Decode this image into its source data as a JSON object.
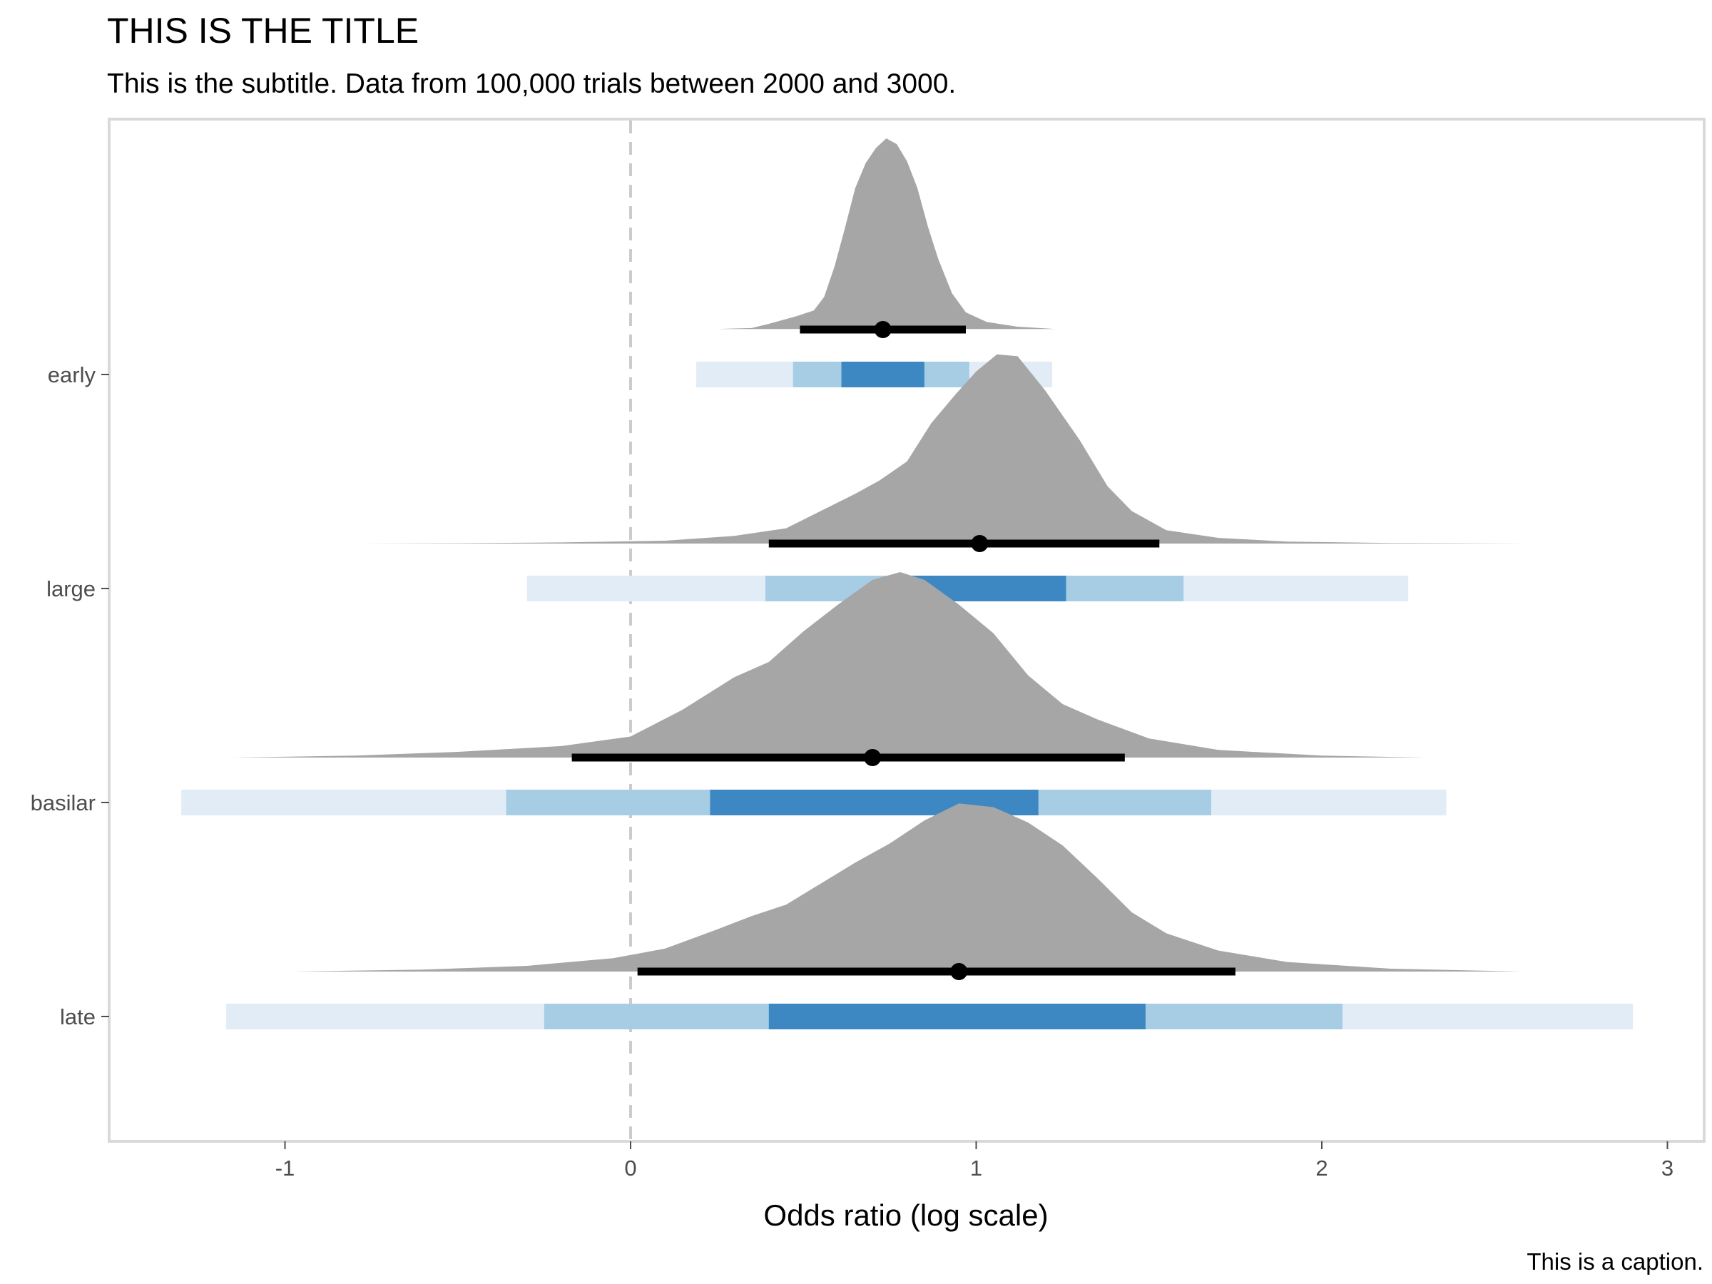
{
  "chart_data": {
    "type": "interval",
    "title": "THIS IS THE TITLE",
    "subtitle": "This is the subtitle. Data from 100,000 trials between 2000 and 3000.",
    "caption": "This is a caption.",
    "xlabel": "Odds ratio (log scale)",
    "ylabel": "",
    "xlim": [
      -1.5,
      3.1
    ],
    "x_ticks": [
      -1,
      0,
      1,
      2,
      3
    ],
    "x_tick_labels": [
      "-1",
      "0",
      "1",
      "2",
      "3"
    ],
    "reference_line": 0,
    "grid": false,
    "colors": {
      "density": "#a6a6a6",
      "interval_outer": "#e1ecf7",
      "interval_mid": "#a6cde4",
      "interval_inner": "#3d88c2",
      "point": "#000000",
      "panel_border": "#d9d9d9",
      "reference_line": "#cccccc"
    },
    "categories": [
      "early",
      "large",
      "basilar",
      "late"
    ],
    "groups": [
      {
        "name": "early",
        "point": 0.73,
        "interval": [
          0.49,
          0.97
        ],
        "intervals_light": [
          0.19,
          1.22
        ],
        "intervals_mid": [
          0.47,
          0.98
        ],
        "intervals_dark": [
          0.61,
          0.85
        ],
        "density": [
          [
            0.25,
            0.003
          ],
          [
            0.35,
            0.008
          ],
          [
            0.4,
            0.03
          ],
          [
            0.48,
            0.07
          ],
          [
            0.53,
            0.1
          ],
          [
            0.56,
            0.17
          ],
          [
            0.59,
            0.33
          ],
          [
            0.62,
            0.53
          ],
          [
            0.65,
            0.74
          ],
          [
            0.68,
            0.87
          ],
          [
            0.71,
            0.95
          ],
          [
            0.74,
            1.0
          ],
          [
            0.77,
            0.97
          ],
          [
            0.8,
            0.88
          ],
          [
            0.83,
            0.74
          ],
          [
            0.86,
            0.54
          ],
          [
            0.89,
            0.37
          ],
          [
            0.93,
            0.19
          ],
          [
            0.97,
            0.09
          ],
          [
            1.03,
            0.04
          ],
          [
            1.12,
            0.015
          ],
          [
            1.23,
            0.003
          ]
        ]
      },
      {
        "name": "large",
        "point": 1.01,
        "interval": [
          0.4,
          1.53
        ],
        "intervals_light": [
          -0.3,
          2.25
        ],
        "intervals_mid": [
          0.39,
          1.6
        ],
        "intervals_dark": [
          0.76,
          1.26
        ],
        "density": [
          [
            -0.8,
            0.0
          ],
          [
            -0.5,
            0.002
          ],
          [
            -0.2,
            0.006
          ],
          [
            0.1,
            0.015
          ],
          [
            0.3,
            0.04
          ],
          [
            0.45,
            0.08
          ],
          [
            0.55,
            0.17
          ],
          [
            0.65,
            0.26
          ],
          [
            0.72,
            0.33
          ],
          [
            0.8,
            0.43
          ],
          [
            0.87,
            0.63
          ],
          [
            0.94,
            0.78
          ],
          [
            1.0,
            0.9
          ],
          [
            1.06,
            0.99
          ],
          [
            1.12,
            0.98
          ],
          [
            1.2,
            0.8
          ],
          [
            1.3,
            0.54
          ],
          [
            1.38,
            0.3
          ],
          [
            1.45,
            0.17
          ],
          [
            1.55,
            0.07
          ],
          [
            1.7,
            0.03
          ],
          [
            1.9,
            0.01
          ],
          [
            2.2,
            0.003
          ],
          [
            2.6,
            0.0
          ]
        ]
      },
      {
        "name": "basilar",
        "point": 0.7,
        "interval": [
          -0.17,
          1.43
        ],
        "intervals_light": [
          -1.3,
          2.36
        ],
        "intervals_mid": [
          -0.36,
          1.68
        ],
        "intervals_dark": [
          0.23,
          1.18
        ],
        "density": [
          [
            -1.15,
            0.0
          ],
          [
            -0.8,
            0.01
          ],
          [
            -0.5,
            0.03
          ],
          [
            -0.2,
            0.06
          ],
          [
            0.0,
            0.11
          ],
          [
            0.15,
            0.25
          ],
          [
            0.3,
            0.42
          ],
          [
            0.4,
            0.5
          ],
          [
            0.5,
            0.66
          ],
          [
            0.6,
            0.8
          ],
          [
            0.7,
            0.93
          ],
          [
            0.78,
            0.97
          ],
          [
            0.85,
            0.93
          ],
          [
            0.95,
            0.8
          ],
          [
            1.05,
            0.65
          ],
          [
            1.15,
            0.43
          ],
          [
            1.25,
            0.28
          ],
          [
            1.35,
            0.2
          ],
          [
            1.5,
            0.1
          ],
          [
            1.7,
            0.04
          ],
          [
            2.0,
            0.01
          ],
          [
            2.3,
            0.0
          ]
        ]
      },
      {
        "name": "late",
        "point": 0.95,
        "interval": [
          0.02,
          1.75
        ],
        "intervals_light": [
          -1.17,
          2.9
        ],
        "intervals_mid": [
          -0.25,
          2.06
        ],
        "intervals_dark": [
          0.4,
          1.49
        ],
        "density": [
          [
            -0.98,
            0.0
          ],
          [
            -0.6,
            0.01
          ],
          [
            -0.3,
            0.03
          ],
          [
            -0.05,
            0.07
          ],
          [
            0.1,
            0.12
          ],
          [
            0.25,
            0.22
          ],
          [
            0.35,
            0.29
          ],
          [
            0.45,
            0.35
          ],
          [
            0.55,
            0.46
          ],
          [
            0.65,
            0.57
          ],
          [
            0.75,
            0.67
          ],
          [
            0.85,
            0.79
          ],
          [
            0.95,
            0.88
          ],
          [
            1.05,
            0.86
          ],
          [
            1.15,
            0.78
          ],
          [
            1.25,
            0.66
          ],
          [
            1.35,
            0.49
          ],
          [
            1.45,
            0.31
          ],
          [
            1.55,
            0.2
          ],
          [
            1.7,
            0.11
          ],
          [
            1.9,
            0.05
          ],
          [
            2.2,
            0.015
          ],
          [
            2.58,
            0.0
          ]
        ]
      }
    ]
  }
}
